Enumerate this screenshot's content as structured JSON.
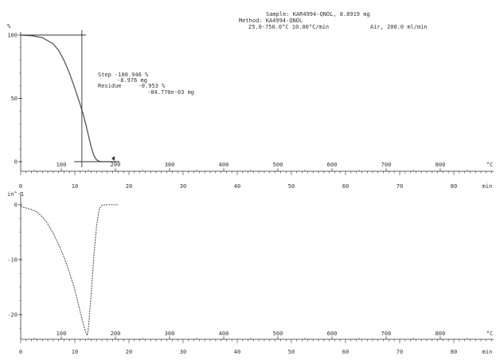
{
  "header": {
    "sample_label": "Sample:",
    "sample_value": "KAR4994-QNOL, 8.8919 mg",
    "method_label": "Method:",
    "method_value": "KA4994-QNOL",
    "range": "25.0-750.0°C 10.00°C/min",
    "gas": "Air, 200.0 ml/min"
  },
  "annotation": {
    "step_label": "Step",
    "step_percent": "-100.946 %",
    "step_mg": "-8.976 mg",
    "residue_label": "Residue",
    "residue_percent": "-0.953 %",
    "residue_mg": "-84.770e-03 mg"
  },
  "colors": {
    "ink": "#333333",
    "curve": "#555555"
  },
  "chart_data": [
    {
      "type": "line",
      "name": "TGA",
      "ylabel": "%",
      "y_ticks": [
        "100",
        "50",
        "0"
      ],
      "ylim": [
        0,
        100
      ],
      "temp_axis": {
        "unit": "°C",
        "ticks": [
          "100",
          "200",
          "300",
          "400",
          "500",
          "600",
          "700",
          "800"
        ]
      },
      "time_axis": {
        "unit": "min",
        "ticks": [
          "0",
          "10",
          "20",
          "30",
          "40",
          "50",
          "60",
          "70",
          "80"
        ]
      },
      "xlim": [
        0,
        88
      ],
      "x": [
        0,
        2,
        4,
        6,
        7,
        8,
        9,
        10,
        11,
        11.5,
        12,
        12.5,
        13,
        13.5,
        14,
        14.5,
        15,
        16,
        17,
        18
      ],
      "y": [
        100,
        99.5,
        98,
        93,
        88,
        80,
        70,
        58,
        45,
        38,
        30,
        21,
        12,
        5,
        1.5,
        0.3,
        0,
        0,
        0,
        0
      ],
      "tangent_x": 11.3,
      "tangent_y": 100
    },
    {
      "type": "line",
      "name": "DTG",
      "ylabel": "in^-1",
      "y_ticks": [
        "0",
        "-10",
        "-20"
      ],
      "ylim": [
        -25,
        2
      ],
      "temp_axis": {
        "unit": "°C",
        "ticks": [
          "100",
          "200",
          "300",
          "400",
          "500",
          "600",
          "700",
          "800"
        ]
      },
      "time_axis": {
        "unit": "min",
        "ticks": [
          "0",
          "10",
          "20",
          "30",
          "40",
          "50",
          "60",
          "70",
          "80"
        ]
      },
      "xlim": [
        0,
        88
      ],
      "x": [
        0,
        1,
        2,
        3,
        4,
        5,
        6,
        7,
        8,
        9,
        10,
        11,
        11.5,
        12,
        12.3,
        12.5,
        13,
        13.5,
        14,
        14.5,
        15,
        16,
        17,
        18
      ],
      "y": [
        -0.3,
        -0.6,
        -0.9,
        -1.3,
        -2.2,
        -3.5,
        -5.2,
        -7.2,
        -9.5,
        -12.3,
        -15.5,
        -19.5,
        -21.5,
        -23.2,
        -23.8,
        -22.5,
        -16.5,
        -9.5,
        -4.0,
        -0.8,
        -0.1,
        0,
        0,
        0
      ]
    }
  ]
}
